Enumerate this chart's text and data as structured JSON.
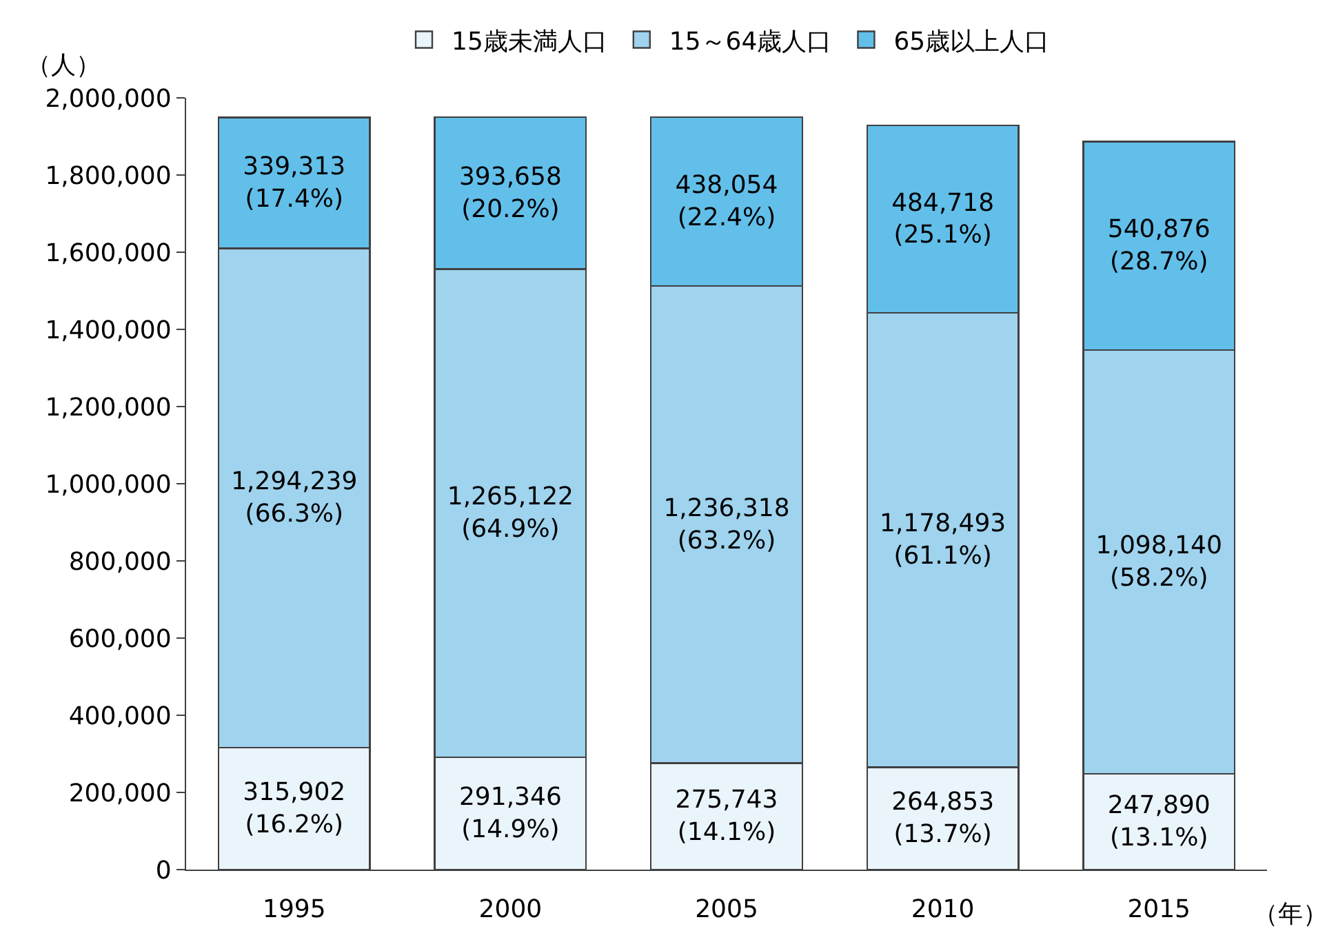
{
  "chart_data": {
    "type": "bar",
    "stacked": true,
    "ylabel": "（人）",
    "xlabel": "（年）",
    "categories": [
      "1995",
      "2000",
      "2005",
      "2010",
      "2015"
    ],
    "series": [
      {
        "name": "15歳未満人口",
        "color": "#eaf4fb",
        "values": [
          315902,
          291346,
          275743,
          264853,
          247890
        ],
        "value_labels": [
          "315,902\n(16.2%)",
          "291,346\n(14.9%)",
          "275,743\n(14.1%)",
          "264,853\n(13.7%)",
          "247,890\n(13.1%)"
        ]
      },
      {
        "name": "15～64歳人口",
        "color": "#9fd3ee",
        "values": [
          1294239,
          1265122,
          1236318,
          1178493,
          1098140
        ],
        "value_labels": [
          "1,294,239\n(66.3%)",
          "1,265,122\n(64.9%)",
          "1,236,318\n(63.2%)",
          "1,178,493\n(61.1%)",
          "1,098,140\n(58.2%)"
        ]
      },
      {
        "name": "65歳以上人口",
        "color": "#62bfea",
        "values": [
          339313,
          393658,
          438054,
          484718,
          540876
        ],
        "value_labels": [
          "339,313\n(17.4%)",
          "393,658\n(20.2%)",
          "438,054\n(22.4%)",
          "484,718\n(25.1%)",
          "540,876\n(28.7%)"
        ]
      }
    ],
    "ylim": [
      0,
      2000000
    ],
    "yticks": [
      {
        "value": 0,
        "label": "0"
      },
      {
        "value": 200000,
        "label": "200,000"
      },
      {
        "value": 400000,
        "label": "400,000"
      },
      {
        "value": 600000,
        "label": "600,000"
      },
      {
        "value": 800000,
        "label": "800,000"
      },
      {
        "value": 1000000,
        "label": "1,000,000"
      },
      {
        "value": 1200000,
        "label": "1,200,000"
      },
      {
        "value": 1400000,
        "label": "1,400,000"
      },
      {
        "value": 1600000,
        "label": "1,600,000"
      },
      {
        "value": 1800000,
        "label": "1,800,000"
      },
      {
        "value": 2000000,
        "label": "2,000,000"
      }
    ],
    "grid": false,
    "legend": "top"
  }
}
